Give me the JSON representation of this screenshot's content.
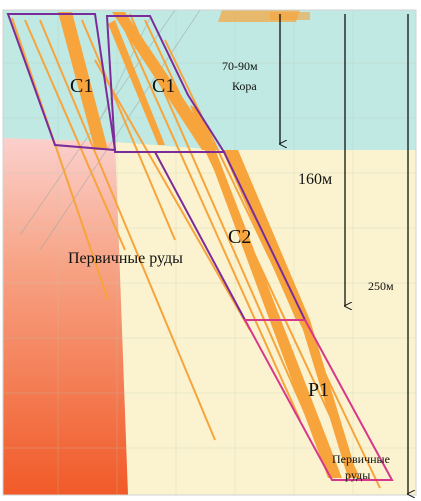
{
  "labels": {
    "block_c1_left": "C1",
    "block_c1_right": "C1",
    "block_c2": "C2",
    "block_p1": "P1",
    "depth_weathering": "70-90м",
    "weathering_crust": "Кора",
    "depth_160": "160м",
    "depth_250": "250м",
    "primary_ores_mid": "Первичные руды",
    "primary_ores_bottom_1": "Первичные",
    "primary_ores_bottom_2": "руды"
  },
  "colors": {
    "weathering_zone": "#bfe9e2",
    "primary_zone": "#fbf3cf",
    "host_rock": "#f26a35",
    "ore_body": "#f7a43c",
    "block_outline_c1_c2": "#7b2c99",
    "block_outline_p1": "#d8378a",
    "grid": "#b9c7b4",
    "arrow": "#111111"
  }
}
